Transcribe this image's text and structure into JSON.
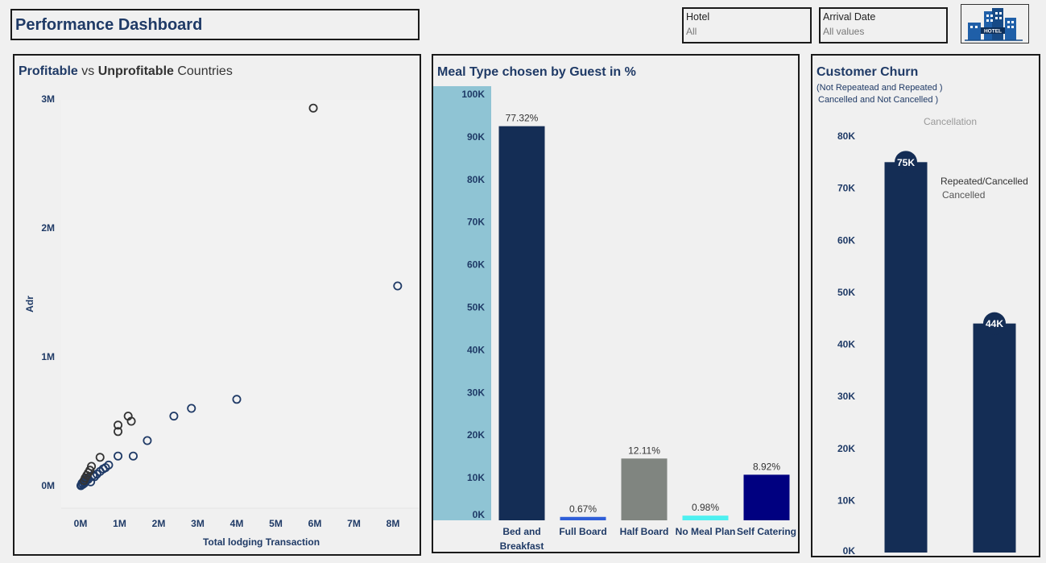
{
  "header": {
    "title": "Performance Dashboard"
  },
  "filters": {
    "hotel": {
      "label": "Hotel",
      "value": "All"
    },
    "arrival_date": {
      "label": "Arrival Date",
      "value": "All values"
    }
  },
  "logo": {
    "icon": "hotel-building-icon",
    "text": "HOTEL"
  },
  "colors": {
    "navy": "#142d55",
    "accent_blue": "#1f3a66",
    "light_blue": "#8fc4d4",
    "gray": "#808580",
    "cyan": "#4ef0f0",
    "dark_navy": "#000080",
    "royal_blue": "#2f5ed8"
  },
  "chart_data": [
    {
      "type": "scatter",
      "title_parts": [
        "Profitable",
        " vs ",
        "Unprofitable",
        " Countries"
      ],
      "xlabel": "Total lodging Transaction",
      "ylabel": "Adr",
      "xlim": [
        0,
        8000000
      ],
      "ylim": [
        0,
        3000000
      ],
      "x_ticks": [
        "0M",
        "1M",
        "2M",
        "3M",
        "4M",
        "5M",
        "6M",
        "7M",
        "8M"
      ],
      "y_ticks": [
        "0M",
        "1M",
        "2M",
        "3M"
      ],
      "series": [
        {
          "color": "#1f3a66",
          "points": [
            [
              8120000,
              1550000
            ],
            [
              4000000,
              670000
            ],
            [
              2840000,
              600000
            ],
            [
              2390000,
              540000
            ],
            [
              1710000,
              350000
            ],
            [
              1350000,
              230000
            ],
            [
              960000,
              230000
            ],
            [
              720000,
              160000
            ],
            [
              640000,
              140000
            ],
            [
              580000,
              130000
            ],
            [
              500000,
              110000
            ],
            [
              420000,
              90000
            ],
            [
              360000,
              70000
            ],
            [
              320000,
              80000
            ],
            [
              260000,
              30000
            ],
            [
              200000,
              50000
            ],
            [
              150000,
              40000
            ],
            [
              100000,
              20000
            ],
            [
              60000,
              10000
            ],
            [
              20000,
              5000
            ],
            [
              10000,
              0
            ],
            [
              40000,
              20000
            ],
            [
              80000,
              30000
            ],
            [
              120000,
              45000
            ],
            [
              180000,
              60000
            ]
          ]
        },
        {
          "color": "#333333",
          "points": [
            [
              5960000,
              2930000
            ],
            [
              1220000,
              540000
            ],
            [
              1300000,
              500000
            ],
            [
              960000,
              470000
            ],
            [
              960000,
              420000
            ],
            [
              500000,
              220000
            ],
            [
              280000,
              150000
            ],
            [
              240000,
              120000
            ],
            [
              200000,
              100000
            ],
            [
              160000,
              80000
            ],
            [
              120000,
              60000
            ],
            [
              90000,
              40000
            ]
          ]
        }
      ]
    },
    {
      "type": "bar",
      "title": "Meal Type chosen by Guest in %",
      "categories": [
        "Bed and Breakfast",
        "Full Board",
        "Half Board",
        "No Meal Plan",
        "Self Catering"
      ],
      "values": [
        92500,
        800,
        14500,
        1100,
        10700
      ],
      "labels": [
        "77.32%",
        "0.67%",
        "12.11%",
        "0.98%",
        "8.92%"
      ],
      "colors": [
        "#142d55",
        "#2f5ed8",
        "#808580",
        "#4ef0f0",
        "#000080"
      ],
      "ylim": [
        0,
        100000
      ],
      "y_ticks": [
        "0K",
        "10K",
        "20K",
        "30K",
        "40K",
        "50K",
        "60K",
        "70K",
        "80K",
        "90K",
        "100K"
      ]
    },
    {
      "type": "bar",
      "title": "Customer Churn",
      "subtitle": [
        "(Not Repeatead and  Repeated )",
        "Cancelled and Not Cancelled  )"
      ],
      "legend_title": "Cancellation",
      "annotation": [
        "Repeated/Cancelled",
        "Cancelled"
      ],
      "categories": [
        "",
        ""
      ],
      "values": [
        75000,
        44000
      ],
      "labels": [
        "75K",
        "44K"
      ],
      "ylim": [
        0,
        80000
      ],
      "y_ticks": [
        "0K",
        "10K",
        "20K",
        "30K",
        "40K",
        "50K",
        "60K",
        "70K",
        "80K"
      ]
    }
  ]
}
